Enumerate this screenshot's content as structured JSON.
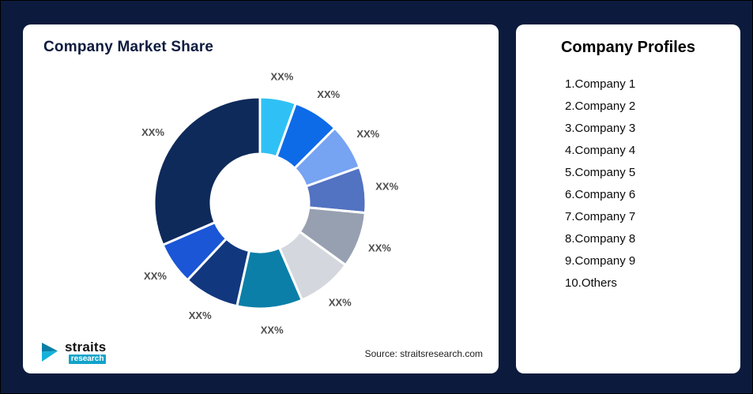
{
  "theme": {
    "page_bg": "#0c1b3d",
    "card_bg": "#ffffff",
    "accent_teal": "#12a3c9"
  },
  "chart_card": {
    "title": "Company Market Share",
    "source": "Source: straitsresearch.com",
    "logo_name": "straits",
    "logo_sub": "research"
  },
  "profiles_card": {
    "title": "Company Profiles",
    "items": [
      "1.Company 1",
      "2.Company 2",
      "3.Company 3",
      "4.Company 4",
      "5.Company 5",
      "6.Company 6",
      "7.Company 7",
      "8.Company 8",
      "9.Company 9",
      "10.Others"
    ]
  },
  "chart_data": {
    "type": "pie",
    "subtype": "donut",
    "title": "Company Market Share",
    "categories": [
      "Company 1",
      "Company 2",
      "Company 3",
      "Company 4",
      "Company 5",
      "Company 6",
      "Company 7",
      "Company 8",
      "Company 9",
      "Others"
    ],
    "slice_labels": [
      "XX%",
      "XX%",
      "XX%",
      "XX%",
      "XX%",
      "XX%",
      "XX%",
      "XX%",
      "XX%",
      "XX%"
    ],
    "values_are_masked_as": "XX%",
    "values": [
      5.5,
      7,
      7,
      7,
      8.5,
      8.5,
      10,
      8.5,
      6.5,
      31.5
    ],
    "colors": [
      "#2fc1f5",
      "#0d6be8",
      "#76a3f2",
      "#5272c2",
      "#97a0b0",
      "#d4d8de",
      "#0b7fa8",
      "#11377e",
      "#1a56d6",
      "#0e2a5a"
    ],
    "inner_radius_ratio": 0.46,
    "start_angle_deg": 0,
    "direction": "clockwise",
    "legend": "none",
    "label_color": "#4d4d4d",
    "slice_border_color": "#ffffff"
  }
}
